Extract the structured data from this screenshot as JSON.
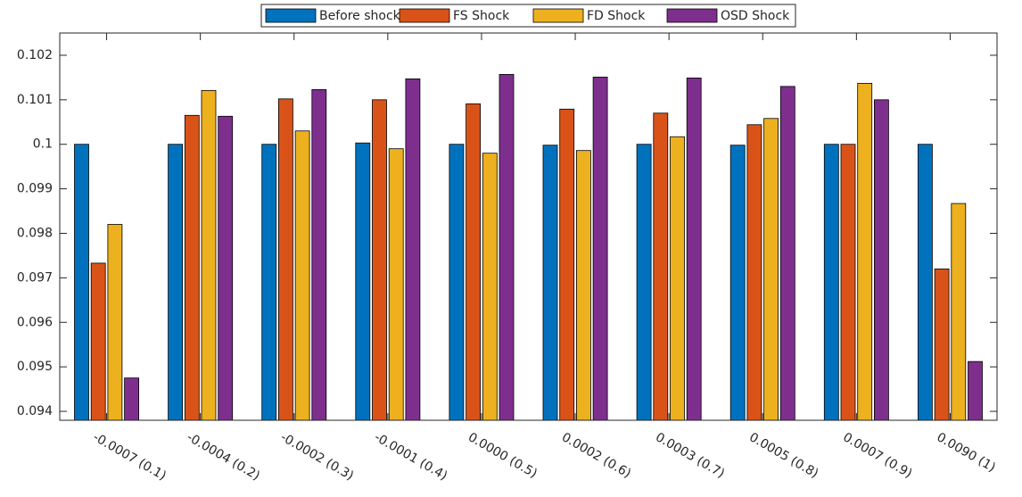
{
  "chart_data": {
    "type": "bar",
    "categories": [
      "-0.0007 (0.1)",
      "-0.0004 (0.2)",
      "-0.0002 (0.3)",
      "-0.0001 (0.4)",
      "0.0000 (0.5)",
      "0.0002 (0.6)",
      "0.0003 (0.7)",
      "0.0005 (0.8)",
      "0.0007 (0.9)",
      "0.0090 (1)"
    ],
    "series": [
      {
        "name": "Before shock",
        "color": "#0072BD",
        "values": [
          0.1,
          0.1,
          0.1,
          0.10003,
          0.1,
          0.09998,
          0.1,
          0.09998,
          0.1,
          0.1
        ]
      },
      {
        "name": "FS Shock",
        "color": "#D95319",
        "values": [
          0.09733,
          0.10065,
          0.10102,
          0.101,
          0.10091,
          0.10079,
          0.1007,
          0.10044,
          0.1,
          0.0972
        ]
      },
      {
        "name": "FD Shock",
        "color": "#EDB120",
        "values": [
          0.0982,
          0.10121,
          0.1003,
          0.0999,
          0.0998,
          0.09986,
          0.10017,
          0.10058,
          0.10137,
          0.09867
        ]
      },
      {
        "name": "OSD Shock",
        "color": "#7E2F8E",
        "values": [
          0.09475,
          0.10063,
          0.10123,
          0.10147,
          0.10157,
          0.10151,
          0.10149,
          0.1013,
          0.101,
          0.09512
        ]
      }
    ],
    "ylim": [
      0.0938,
      0.1025
    ],
    "yticks": [
      0.094,
      0.095,
      0.096,
      0.097,
      0.098,
      0.099,
      0.1,
      0.101,
      0.102
    ],
    "legend": "northoutside"
  }
}
